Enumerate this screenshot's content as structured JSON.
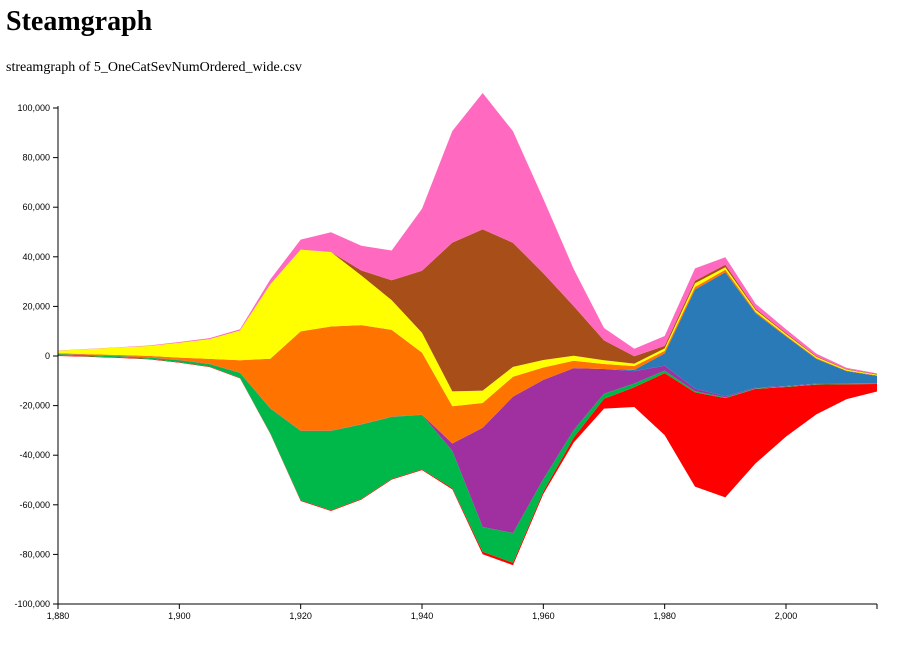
{
  "chart_data": {
    "type": "steamgraph",
    "title": "Steamgraph",
    "subtitle": "streamgraph of 5_OneCatSevNumOrdered_wide.csv",
    "x": [
      1880,
      1885,
      1890,
      1895,
      1900,
      1905,
      1910,
      1915,
      1920,
      1925,
      1930,
      1935,
      1940,
      1945,
      1950,
      1955,
      1960,
      1965,
      1970,
      1975,
      1980,
      1985,
      1990,
      1995,
      2000,
      2005,
      2010,
      2015
    ],
    "series": [
      {
        "color": "#ff0000",
        "values": [
          200,
          200,
          200,
          200,
          200,
          200,
          200,
          200,
          300,
          300,
          300,
          300,
          300,
          500,
          1000,
          1000,
          1000,
          2000,
          4000,
          8000,
          25000,
          38000,
          40000,
          30000,
          20000,
          12000,
          6000,
          3000
        ]
      },
      {
        "color": "#00b84a",
        "values": [
          500,
          500,
          500,
          500,
          800,
          1000,
          2000,
          10000,
          28000,
          32000,
          30000,
          25000,
          22000,
          15000,
          10000,
          12000,
          5000,
          3000,
          2000,
          1500,
          1000,
          500,
          300,
          200,
          200,
          200,
          200,
          200
        ]
      },
      {
        "color": "#a030a0",
        "values": [
          100,
          100,
          100,
          100,
          100,
          100,
          100,
          100,
          100,
          100,
          100,
          100,
          100,
          3000,
          40000,
          55000,
          40000,
          25000,
          10000,
          5000,
          2000,
          1000,
          500,
          300,
          200,
          200,
          100,
          100
        ]
      },
      {
        "color": "#2a7ab8",
        "values": [
          0,
          0,
          0,
          0,
          0,
          0,
          0,
          0,
          0,
          0,
          0,
          0,
          0,
          0,
          0,
          0,
          0,
          0,
          0,
          500,
          5000,
          40000,
          50000,
          30000,
          20000,
          10000,
          5000,
          3000
        ]
      },
      {
        "color": "#ff7300",
        "values": [
          300,
          300,
          400,
          600,
          1000,
          2000,
          5000,
          20000,
          40000,
          42000,
          40000,
          35000,
          25000,
          15000,
          10000,
          8000,
          5000,
          3000,
          2000,
          1500,
          1000,
          1000,
          1000,
          500,
          400,
          300,
          200,
          200
        ]
      },
      {
        "color": "#ffff00",
        "values": [
          1000,
          2000,
          3000,
          4000,
          6000,
          8000,
          12000,
          30000,
          33000,
          30000,
          20000,
          12000,
          8000,
          6000,
          5000,
          4000,
          3000,
          2000,
          1500,
          1000,
          1000,
          1500,
          1000,
          800,
          600,
          500,
          400,
          300
        ]
      },
      {
        "color": "#a84e18",
        "values": [
          0,
          0,
          0,
          0,
          0,
          0,
          0,
          0,
          0,
          0,
          2000,
          8000,
          25000,
          60000,
          65000,
          50000,
          35000,
          20000,
          8000,
          3000,
          1000,
          1000,
          1000,
          500,
          400,
          300,
          200,
          200
        ]
      },
      {
        "color": "#ff69c0",
        "values": [
          100,
          100,
          100,
          200,
          300,
          400,
          500,
          2000,
          4000,
          8000,
          10000,
          12000,
          25000,
          45000,
          55000,
          45000,
          30000,
          15000,
          5000,
          3000,
          4000,
          5000,
          3000,
          2000,
          1500,
          1000,
          500,
          300
        ]
      }
    ],
    "xlim": [
      1880,
      2015
    ],
    "xticks": [
      {
        "value": 1880,
        "label": "1,880"
      },
      {
        "value": 1900,
        "label": "1,900"
      },
      {
        "value": 1920,
        "label": "1,920"
      },
      {
        "value": 1940,
        "label": "1,940"
      },
      {
        "value": 1960,
        "label": "1,960"
      },
      {
        "value": 1980,
        "label": "1,980"
      },
      {
        "value": 2000,
        "label": "2,000"
      }
    ],
    "ylim": [
      -100000,
      100000
    ],
    "yticks": [
      {
        "value": -100000,
        "label": "-100,000"
      },
      {
        "value": -80000,
        "label": "-80,000"
      },
      {
        "value": -60000,
        "label": "-60,000"
      },
      {
        "value": -40000,
        "label": "-40,000"
      },
      {
        "value": -20000,
        "label": "-20,000"
      },
      0,
      {
        "value": 20000,
        "label": "20,000"
      },
      {
        "value": 40000,
        "label": "40,000"
      },
      {
        "value": 60000,
        "label": "60,000"
      },
      {
        "value": 80000,
        "label": "80,000"
      },
      {
        "value": 100000,
        "label": "100,000"
      }
    ]
  }
}
